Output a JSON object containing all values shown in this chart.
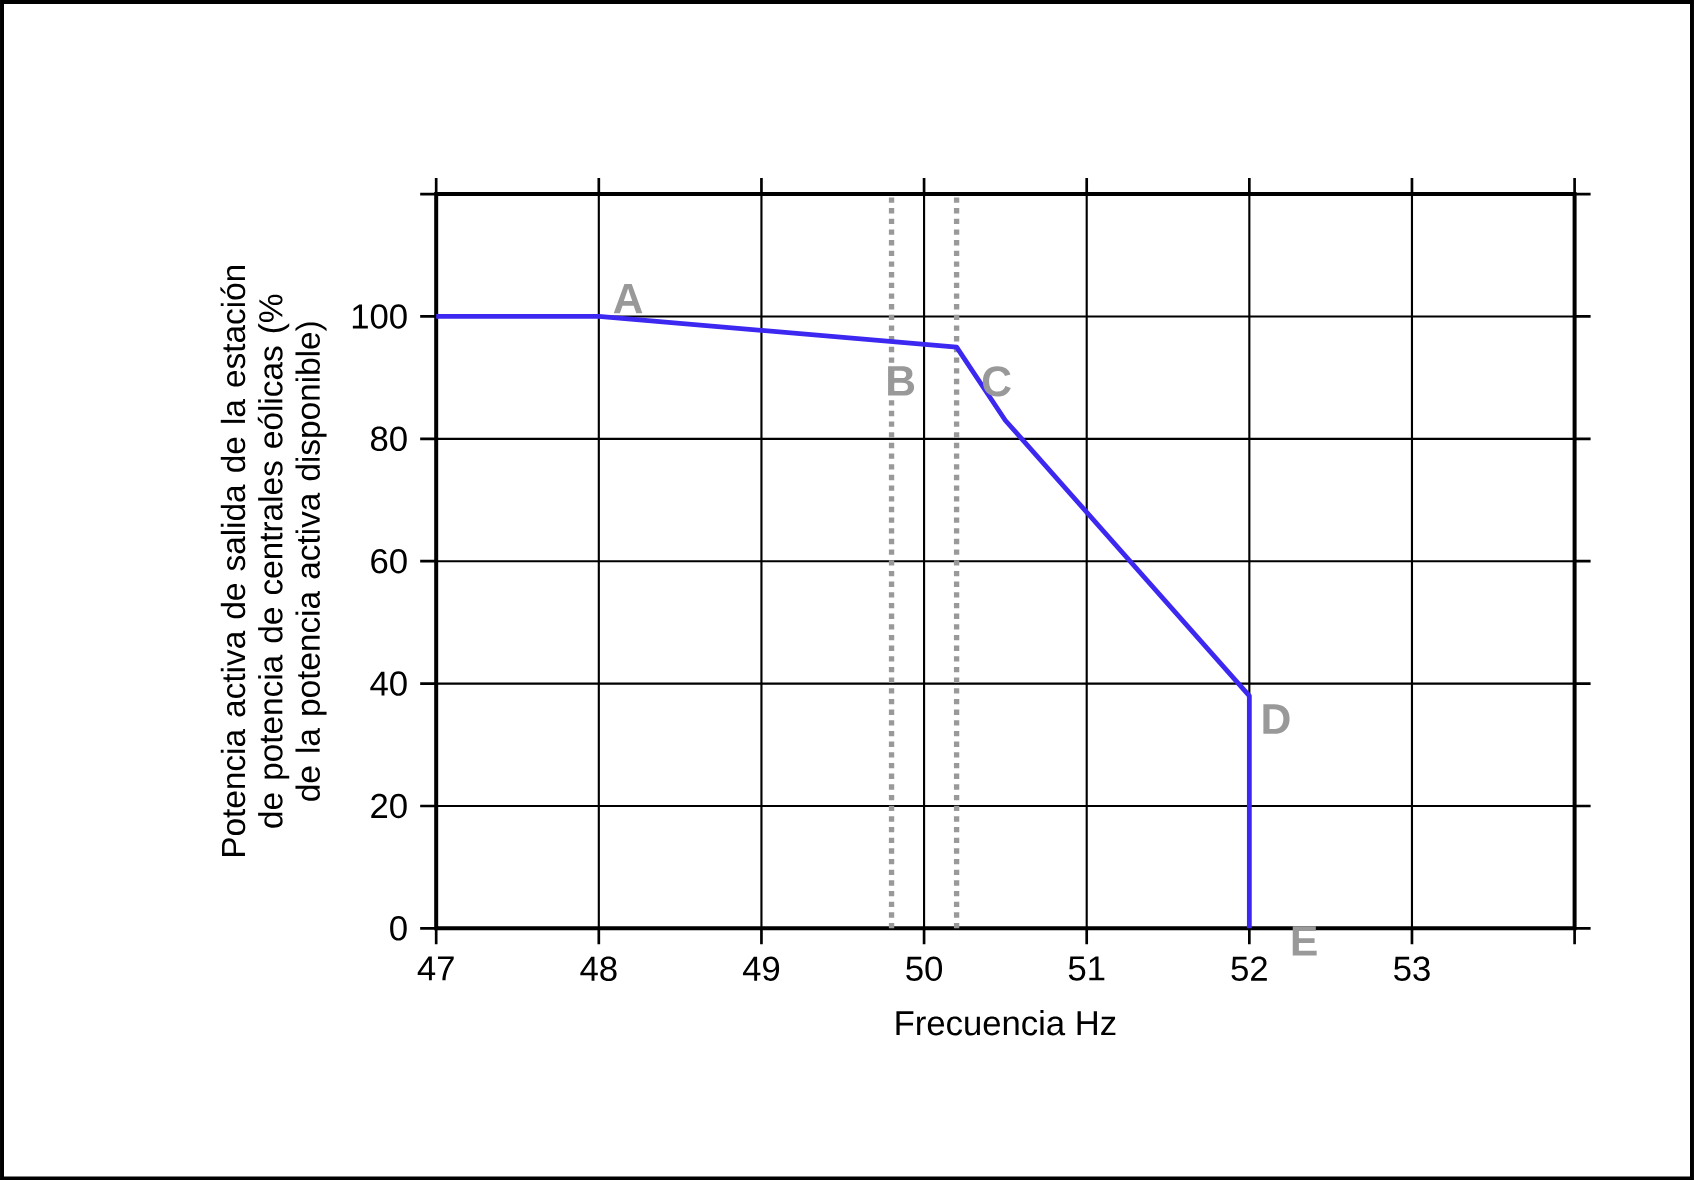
{
  "chart_data": {
    "type": "line",
    "xlabel": "Frecuencia Hz",
    "ylabel": "Potencia activa de salida de la estación de potencia de centrales eólicas (% de la potencia activa disponible)",
    "x": [
      47,
      48,
      50.2,
      50.5,
      52,
      52
    ],
    "series": [
      {
        "color": "#3c28f0",
        "values": [
          100,
          100,
          95,
          83,
          38,
          0
        ]
      }
    ],
    "xlim": [
      47,
      54
    ],
    "ylim": [
      0,
      120
    ],
    "xticks": [
      47,
      48,
      49,
      50,
      51,
      52,
      53,
      {
        "value": 54,
        "label": null
      }
    ],
    "yticks": [
      0,
      20,
      40,
      60,
      80,
      100,
      {
        "value": 120,
        "label": null
      }
    ],
    "grid": true,
    "marker": "none",
    "line_style": "solid",
    "ref_lines": [
      {
        "axis": "x",
        "value": 49.8,
        "color": "#999999",
        "line_style": "dotted"
      },
      {
        "axis": "x",
        "value": 50.2,
        "color": "#999999",
        "line_style": "dotted"
      }
    ],
    "annotations": [
      {
        "text": "A",
        "x": 48,
        "y": 100
      },
      {
        "text": "B",
        "x": 50.2,
        "y": 95
      },
      {
        "text": "C",
        "x": 50.2,
        "y": 95
      },
      {
        "text": "D",
        "x": 52,
        "y": 38
      },
      {
        "text": "E",
        "x": 52,
        "y": 0
      }
    ]
  }
}
